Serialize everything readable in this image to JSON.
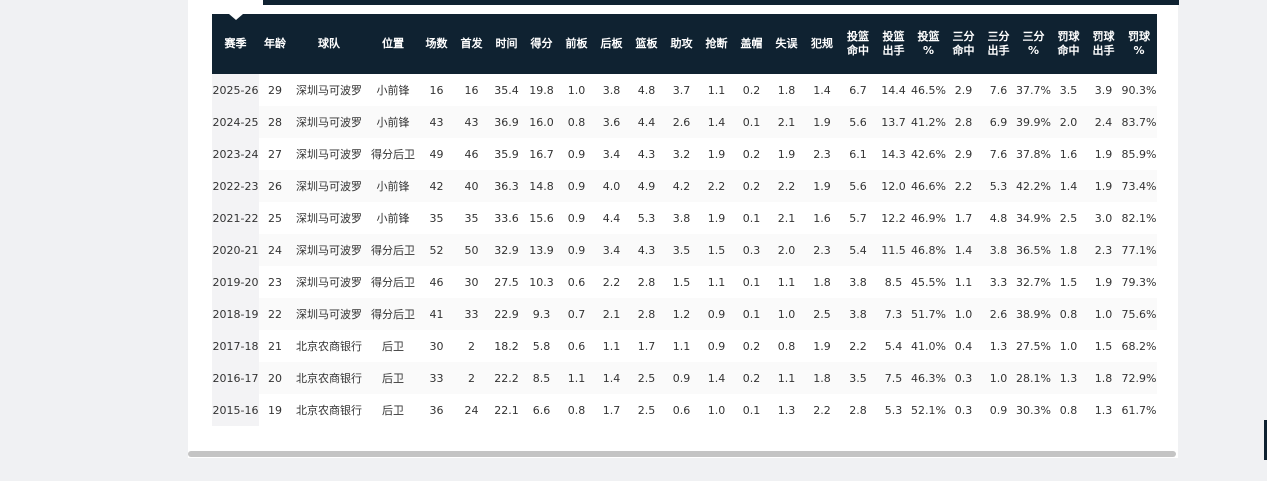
{
  "table": {
    "header": [
      [
        "赛季"
      ],
      [
        "年龄"
      ],
      [
        "球队"
      ],
      [
        "位置"
      ],
      [
        "场数"
      ],
      [
        "首发"
      ],
      [
        "时间"
      ],
      [
        "得分"
      ],
      [
        "前板"
      ],
      [
        "后板"
      ],
      [
        "篮板"
      ],
      [
        "助攻"
      ],
      [
        "抢断"
      ],
      [
        "盖帽"
      ],
      [
        "失误"
      ],
      [
        "犯规"
      ],
      [
        "投篮",
        "命中"
      ],
      [
        "投篮",
        "出手"
      ],
      [
        "投篮",
        "%"
      ],
      [
        "三分",
        "命中"
      ],
      [
        "三分",
        "出手"
      ],
      [
        "三分",
        "%"
      ],
      [
        "罚球",
        "命中"
      ],
      [
        "罚球",
        "出手"
      ],
      [
        "罚球",
        "%"
      ]
    ],
    "rows": [
      [
        "2025-26",
        "29",
        "深圳马可波罗",
        "小前锋",
        "16",
        "16",
        "35.4",
        "19.8",
        "1.0",
        "3.8",
        "4.8",
        "3.7",
        "1.1",
        "0.2",
        "1.8",
        "1.4",
        "6.7",
        "14.4",
        "46.5%",
        "2.9",
        "7.6",
        "37.7%",
        "3.5",
        "3.9",
        "90.3%"
      ],
      [
        "2024-25",
        "28",
        "深圳马可波罗",
        "小前锋",
        "43",
        "43",
        "36.9",
        "16.0",
        "0.8",
        "3.6",
        "4.4",
        "2.6",
        "1.4",
        "0.1",
        "2.1",
        "1.9",
        "5.6",
        "13.7",
        "41.2%",
        "2.8",
        "6.9",
        "39.9%",
        "2.0",
        "2.4",
        "83.7%"
      ],
      [
        "2023-24",
        "27",
        "深圳马可波罗",
        "得分后卫",
        "49",
        "46",
        "35.9",
        "16.7",
        "0.9",
        "3.4",
        "4.3",
        "3.2",
        "1.9",
        "0.2",
        "1.9",
        "2.3",
        "6.1",
        "14.3",
        "42.6%",
        "2.9",
        "7.6",
        "37.8%",
        "1.6",
        "1.9",
        "85.9%"
      ],
      [
        "2022-23",
        "26",
        "深圳马可波罗",
        "小前锋",
        "42",
        "40",
        "36.3",
        "14.8",
        "0.9",
        "4.0",
        "4.9",
        "4.2",
        "2.2",
        "0.2",
        "2.2",
        "1.9",
        "5.6",
        "12.0",
        "46.6%",
        "2.2",
        "5.3",
        "42.2%",
        "1.4",
        "1.9",
        "73.4%"
      ],
      [
        "2021-22",
        "25",
        "深圳马可波罗",
        "小前锋",
        "35",
        "35",
        "33.6",
        "15.6",
        "0.9",
        "4.4",
        "5.3",
        "3.8",
        "1.9",
        "0.1",
        "2.1",
        "1.6",
        "5.7",
        "12.2",
        "46.9%",
        "1.7",
        "4.8",
        "34.9%",
        "2.5",
        "3.0",
        "82.1%"
      ],
      [
        "2020-21",
        "24",
        "深圳马可波罗",
        "得分后卫",
        "52",
        "50",
        "32.9",
        "13.9",
        "0.9",
        "3.4",
        "4.3",
        "3.5",
        "1.5",
        "0.3",
        "2.0",
        "2.3",
        "5.4",
        "11.5",
        "46.8%",
        "1.4",
        "3.8",
        "36.5%",
        "1.8",
        "2.3",
        "77.1%"
      ],
      [
        "2019-20",
        "23",
        "深圳马可波罗",
        "得分后卫",
        "46",
        "30",
        "27.5",
        "10.3",
        "0.6",
        "2.2",
        "2.8",
        "1.5",
        "1.1",
        "0.1",
        "1.1",
        "1.8",
        "3.8",
        "8.5",
        "45.5%",
        "1.1",
        "3.3",
        "32.7%",
        "1.5",
        "1.9",
        "79.3%"
      ],
      [
        "2018-19",
        "22",
        "深圳马可波罗",
        "得分后卫",
        "41",
        "33",
        "22.9",
        "9.3",
        "0.7",
        "2.1",
        "2.8",
        "1.2",
        "0.9",
        "0.1",
        "1.0",
        "2.5",
        "3.8",
        "7.3",
        "51.7%",
        "1.0",
        "2.6",
        "38.9%",
        "0.8",
        "1.0",
        "75.6%"
      ],
      [
        "2017-18",
        "21",
        "北京农商银行",
        "后卫",
        "30",
        "2",
        "18.2",
        "5.8",
        "0.6",
        "1.1",
        "1.7",
        "1.1",
        "0.9",
        "0.2",
        "0.8",
        "1.9",
        "2.2",
        "5.4",
        "41.0%",
        "0.4",
        "1.3",
        "27.5%",
        "1.0",
        "1.5",
        "68.2%"
      ],
      [
        "2016-17",
        "20",
        "北京农商银行",
        "后卫",
        "33",
        "2",
        "22.2",
        "8.5",
        "1.1",
        "1.4",
        "2.5",
        "0.9",
        "1.4",
        "0.2",
        "1.1",
        "1.8",
        "3.5",
        "7.5",
        "46.3%",
        "0.3",
        "1.0",
        "28.1%",
        "1.3",
        "1.8",
        "72.9%"
      ],
      [
        "2015-16",
        "19",
        "北京农商银行",
        "后卫",
        "36",
        "24",
        "22.1",
        "6.6",
        "0.8",
        "1.7",
        "2.5",
        "0.6",
        "1.0",
        "0.1",
        "1.3",
        "2.2",
        "2.8",
        "5.3",
        "52.1%",
        "0.3",
        "0.9",
        "30.3%",
        "0.8",
        "1.3",
        "61.7%"
      ]
    ]
  }
}
